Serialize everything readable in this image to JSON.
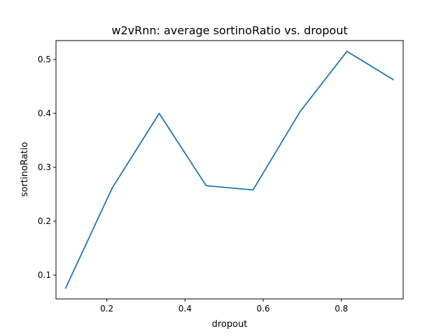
{
  "chart_data": {
    "type": "line",
    "title": "w2vRnn: average sortinoRatio vs. dropout",
    "xlabel": "dropout",
    "ylabel": "sortinoRatio",
    "x": [
      0.094,
      0.214,
      0.334,
      0.454,
      0.574,
      0.694,
      0.814,
      0.934
    ],
    "series": [
      {
        "values": [
          0.075,
          0.262,
          0.4,
          0.266,
          0.258,
          0.403,
          0.515,
          0.462
        ]
      }
    ],
    "xlim": [
      0.07,
      0.958
    ],
    "ylim": [
      0.056,
      0.535
    ],
    "xticks": [
      0.2,
      0.4,
      0.6,
      0.8
    ],
    "xtick_labels": [
      "0.2",
      "0.4",
      "0.6",
      "0.8"
    ],
    "yticks": [
      0.1,
      0.2,
      0.3,
      0.4,
      0.5
    ],
    "ytick_labels": [
      "0.1",
      "0.2",
      "0.3",
      "0.4",
      "0.5"
    ],
    "grid": false,
    "line_color": "#1f77b4"
  }
}
